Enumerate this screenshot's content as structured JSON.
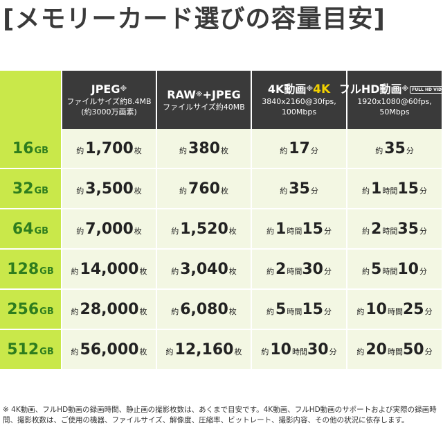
{
  "title": "[メモリーカード選びの容量目安]",
  "headers": [
    {
      "main": "JPEG",
      "ast": "※",
      "line2": "ファイルサイズ約8.4MB",
      "line3": "(約3000万画素)"
    },
    {
      "main": "RAW",
      "ast": "※",
      "main_b": "+JPEG",
      "line2": "ファイルサイズ約40MB"
    },
    {
      "main": "4K動画",
      "ast": "※",
      "badge": "4K",
      "line2": "3840x2160@30fps,",
      "line3": "100Mbps"
    },
    {
      "main": "フルHD動画",
      "ast": "※",
      "badge": "FULL HD VIDEO",
      "line2": "1920x1080@60fps,",
      "line3": "50Mbps"
    }
  ],
  "rows": [
    {
      "cap": "16",
      "unit": "GB",
      "jpeg": "1,700",
      "raw": "380",
      "k4": "17分",
      "fhd": "35分"
    },
    {
      "cap": "32",
      "unit": "GB",
      "jpeg": "3,500",
      "raw": "760",
      "k4": "35分",
      "fhd": "1時間15分"
    },
    {
      "cap": "64",
      "unit": "GB",
      "jpeg": "7,000",
      "raw": "1,520",
      "k4": "1時間15分",
      "fhd": "2時間35分"
    },
    {
      "cap": "128",
      "unit": "GB",
      "jpeg": "14,000",
      "raw": "3,040",
      "k4": "2時間30分",
      "fhd": "5時間10分"
    },
    {
      "cap": "256",
      "unit": "GB",
      "jpeg": "28,000",
      "raw": "6,080",
      "k4": "5時間15分",
      "fhd": "10時間25分"
    },
    {
      "cap": "512",
      "unit": "GB",
      "jpeg": "56,000",
      "raw": "12,160",
      "k4": "10時間30分",
      "fhd": "20時間50分"
    }
  ],
  "prefix": "約",
  "photo_suffix": "枚",
  "note": "※ 4K動画、フルHD動画の録画時間、静止画の撮影枚数は、あくまで目安です。4K動画、フルHD動画のサポートおよび実際の録画時間、撮影枚数は、ご使用の機器、ファイルサイズ、解像度、圧縮率、ビットレート、撮影内容、その他の状況に依存します。"
}
